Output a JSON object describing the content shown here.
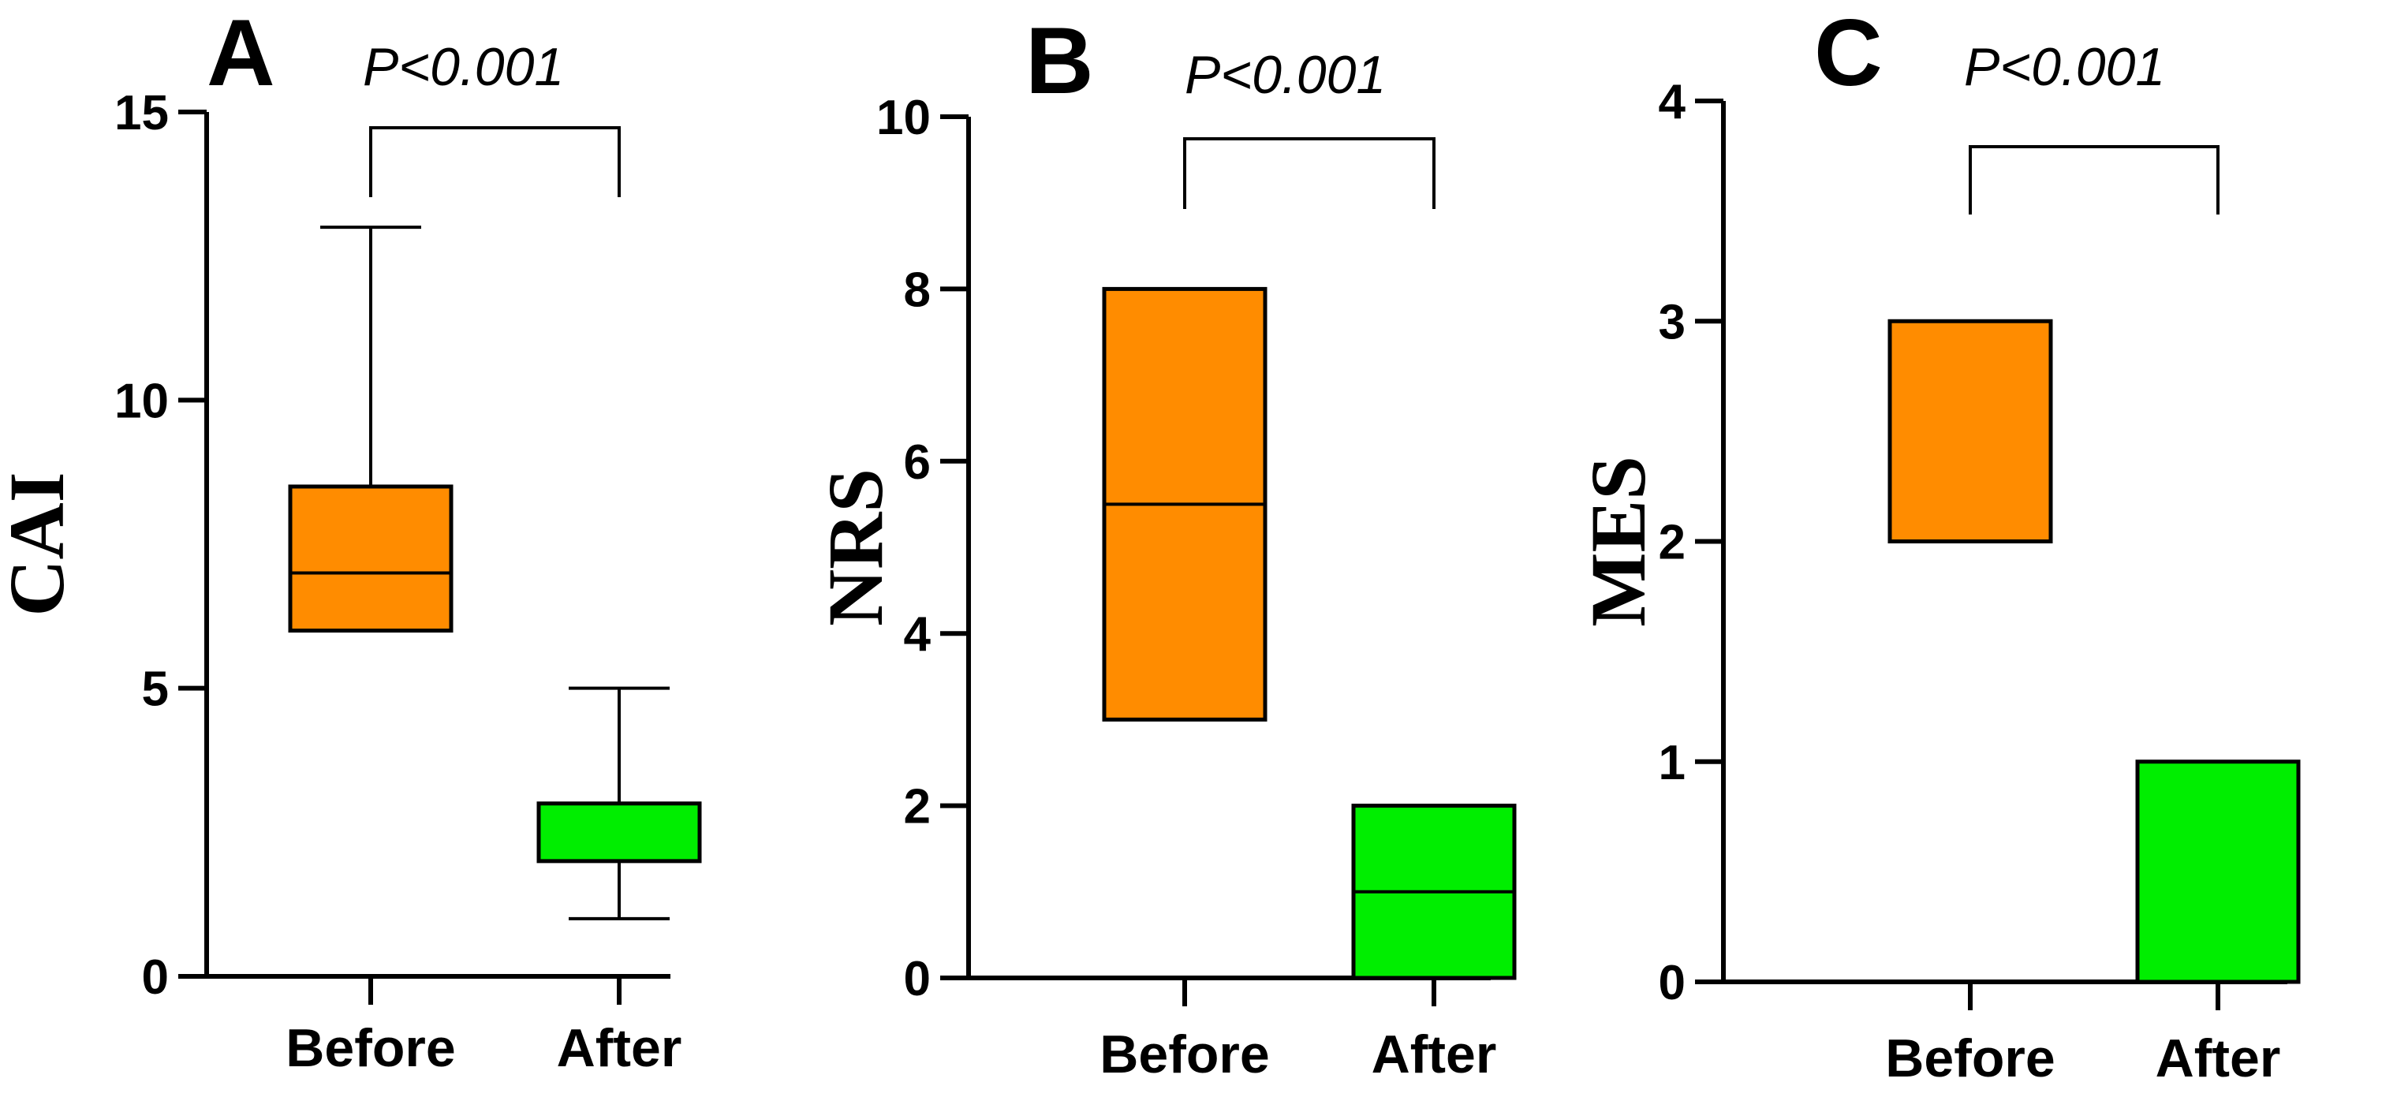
{
  "chart_data": [
    {
      "type": "box",
      "panel_label": "A",
      "ylabel": "CAI",
      "ylim": [
        0,
        15
      ],
      "yticks": [
        "0",
        "5",
        "10",
        "15"
      ],
      "significance": "P<0.001",
      "categories": [
        "Before",
        "After"
      ],
      "boxes": [
        {
          "category": "Before",
          "min": 6,
          "q1": 6,
          "median": 7,
          "q3": 8.5,
          "max": 13,
          "color": "#FF8C00"
        },
        {
          "category": "After",
          "min": 1,
          "q1": 2,
          "median": 2,
          "q3": 3,
          "max": 5,
          "color": "#00EE00"
        }
      ]
    },
    {
      "type": "box",
      "panel_label": "B",
      "ylabel": "NRS",
      "ylim": [
        0,
        10
      ],
      "yticks": [
        "0",
        "2",
        "4",
        "6",
        "8",
        "10"
      ],
      "significance": "P<0.001",
      "categories": [
        "Before",
        "After"
      ],
      "boxes": [
        {
          "category": "Before",
          "min": 3,
          "q1": 3,
          "median": 5.5,
          "q3": 8,
          "max": 8,
          "color": "#FF8C00"
        },
        {
          "category": "After",
          "min": 0,
          "q1": 0,
          "median": 1,
          "q3": 2,
          "max": 2,
          "color": "#00EE00"
        }
      ]
    },
    {
      "type": "box",
      "panel_label": "C",
      "ylabel": "MES",
      "ylim": [
        0,
        4
      ],
      "yticks": [
        "0",
        "1",
        "2",
        "3",
        "4"
      ],
      "significance": "P<0.001",
      "categories": [
        "Before",
        "After"
      ],
      "boxes": [
        {
          "category": "Before",
          "min": 2,
          "q1": 2,
          "median": 2,
          "q3": 3,
          "max": 3,
          "color": "#FF8C00"
        },
        {
          "category": "After",
          "min": 0,
          "q1": 0,
          "median": 0,
          "q3": 1,
          "max": 1,
          "color": "#00EE00"
        }
      ]
    }
  ]
}
